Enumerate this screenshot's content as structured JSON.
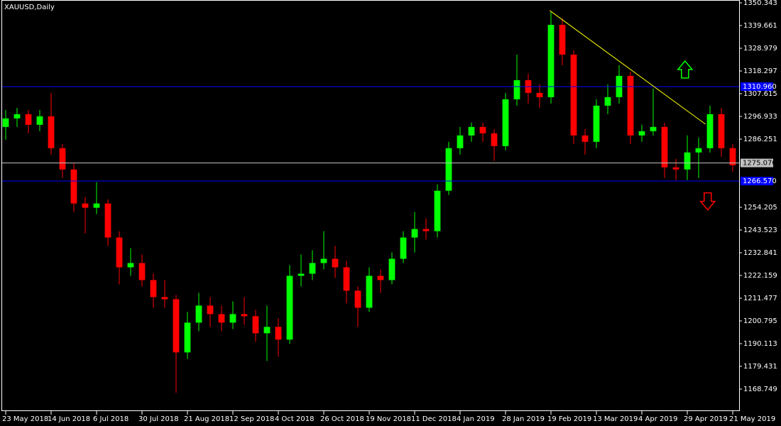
{
  "chart_data": {
    "type": "candlestick",
    "title": "XAUUSD,Daily",
    "up_color": "#00ff00",
    "down_color": "#ff0000",
    "open": [
      1292,
      1296,
      1298,
      1293,
      1297,
      1282,
      1272,
      1256,
      1254,
      1256,
      1240,
      1226,
      1228,
      1220,
      1212,
      1211,
      1186,
      1200,
      1208,
      1204,
      1200,
      1204,
      1203,
      1195,
      1198,
      1192,
      1222,
      1223,
      1228,
      1230,
      1226,
      1215,
      1207,
      1222,
      1220,
      1230,
      1240,
      1244,
      1243,
      1262,
      1282,
      1288,
      1292,
      1289,
      1283,
      1305,
      1314,
      1308,
      1306,
      1340,
      1326,
      1288,
      1285,
      1302,
      1306,
      1316,
      1288,
      1290,
      1292,
      1273,
      1272,
      1280,
      1282,
      1298,
      1282
    ],
    "high": [
      1300,
      1301,
      1300,
      1300,
      1308,
      1284,
      1275,
      1259,
      1266,
      1258,
      1243,
      1235,
      1232,
      1223,
      1220,
      1213,
      1205,
      1214,
      1212,
      1208,
      1210,
      1212,
      1206,
      1208,
      1202,
      1227,
      1232,
      1234,
      1243,
      1236,
      1229,
      1217,
      1226,
      1225,
      1233,
      1243,
      1252,
      1249,
      1265,
      1285,
      1292,
      1294,
      1294,
      1291,
      1308,
      1326,
      1317,
      1312,
      1346,
      1343,
      1328,
      1291,
      1305,
      1312,
      1321,
      1318,
      1293,
      1310,
      1294,
      1277,
      1288,
      1287,
      1302,
      1301,
      1284
    ],
    "low": [
      1286,
      1292,
      1289,
      1290,
      1279,
      1268,
      1252,
      1242,
      1251,
      1236,
      1218,
      1222,
      1217,
      1207,
      1207,
      1167,
      1183,
      1196,
      1198,
      1196,
      1197,
      1199,
      1191,
      1182,
      1184,
      1190,
      1217,
      1220,
      1225,
      1221,
      1209,
      1198,
      1205,
      1214,
      1218,
      1228,
      1233,
      1239,
      1240,
      1260,
      1279,
      1285,
      1285,
      1276,
      1281,
      1302,
      1303,
      1301,
      1303,
      1321,
      1284,
      1279,
      1282,
      1298,
      1303,
      1284,
      1285,
      1288,
      1268,
      1267,
      1267,
      1268,
      1280,
      1278,
      1271
    ],
    "close": [
      1296,
      1298,
      1293,
      1297,
      1282,
      1272,
      1256,
      1254,
      1256,
      1240,
      1226,
      1228,
      1220,
      1212,
      1211,
      1186,
      1200,
      1208,
      1204,
      1200,
      1204,
      1203,
      1195,
      1198,
      1192,
      1222,
      1223,
      1228,
      1230,
      1226,
      1215,
      1207,
      1222,
      1220,
      1230,
      1240,
      1244,
      1243,
      1262,
      1282,
      1288,
      1292,
      1289,
      1283,
      1305,
      1314,
      1308,
      1306,
      1340,
      1326,
      1288,
      1285,
      1302,
      1306,
      1316,
      1288,
      1290,
      1292,
      1273,
      1272,
      1280,
      1282,
      1298,
      1282,
      1274
    ],
    "xlim": [
      -0.5,
      64.5
    ],
    "xticks": [
      {
        "value": 0,
        "label": "23 May 2018"
      },
      {
        "value": 4,
        "label": "14 Jun 2018"
      },
      {
        "value": 8,
        "label": "6 Jul 2018"
      },
      {
        "value": 12,
        "label": "30 Jul 2018"
      },
      {
        "value": 16,
        "label": "21 Aug 2018"
      },
      {
        "value": 20,
        "label": "12 Sep 2018"
      },
      {
        "value": 24,
        "label": "4 Oct 2018"
      },
      {
        "value": 28,
        "label": "26 Oct 2018"
      },
      {
        "value": 32,
        "label": "19 Nov 2018"
      },
      {
        "value": 36,
        "label": "11 Dec 2018"
      },
      {
        "value": 40,
        "label": "4 Jan 2019"
      },
      {
        "value": 44,
        "label": "28 Jan 2019"
      },
      {
        "value": 48,
        "label": "19 Feb 2019"
      },
      {
        "value": 52,
        "label": "13 Mar 2019"
      },
      {
        "value": 56,
        "label": "4 Apr 2019"
      },
      {
        "value": 60,
        "label": "29 Apr 2019"
      },
      {
        "value": 64,
        "label": "21 May 2019"
      }
    ],
    "ylim": [
      1158.07,
      1351.68
    ],
    "yticks": [
      1350.343,
      1339.661,
      1328.979,
      1318.297,
      1307.615,
      1296.933,
      1286.251,
      1254.205,
      1243.523,
      1232.841,
      1222.159,
      1211.477,
      1200.795,
      1190.113,
      1179.431,
      1168.749
    ],
    "hlines": [
      {
        "value": 1310.96,
        "label": "1310.960",
        "color": "#0000ff"
      },
      {
        "value": 1275.07,
        "label": "1275.070",
        "color": "#c0c0c0"
      },
      {
        "value": 1266.57,
        "label": "1266.570",
        "color": "#0000ff"
      }
    ],
    "trendline": {
      "x": [
        47.9,
        61.6
      ],
      "y": [
        1346.7,
        1293.3
      ],
      "color": "#ffff00"
    },
    "arrows": [
      {
        "direction": "up",
        "x": 59.8,
        "y": 1319,
        "color": "#00ff00"
      },
      {
        "direction": "down",
        "x": 61.8,
        "y": 1257,
        "color": "#ff0000"
      }
    ]
  }
}
